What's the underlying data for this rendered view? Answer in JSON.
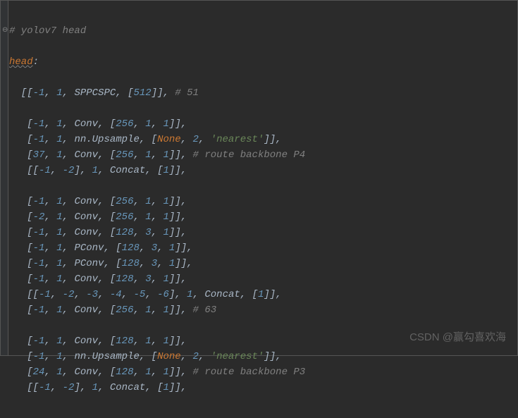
{
  "editor": {
    "comment_top": "# yolov7 head",
    "head_key": "head",
    "colon": ":",
    "lines": [
      {
        "text": "[[-1, 1, SPPCSPC, [512]],",
        "comment": " # 51"
      },
      {
        "text": ""
      },
      {
        "text": " [-1, 1, Conv, [256, 1, 1]],"
      },
      {
        "text_prefix": " [-1, 1, nn.Upsample, [None, 2, ",
        "string": "'nearest'",
        "text_suffix": "]],"
      },
      {
        "text": " [37, 1, Conv, [256, 1, 1]],",
        "comment": " # route backbone P4"
      },
      {
        "text": " [[-1, -2], 1, Concat, [1]],"
      },
      {
        "text": ""
      },
      {
        "text": " [-1, 1, Conv, [256, 1, 1]],"
      },
      {
        "text": " [-2, 1, Conv, [256, 1, 1]],"
      },
      {
        "text": " [-1, 1, Conv, [128, 3, 1]],"
      },
      {
        "text": " [-1, 1, PConv, [128, 3, 1]],"
      },
      {
        "text": " [-1, 1, PConv, [128, 3, 1]],"
      },
      {
        "text": " [-1, 1, Conv, [128, 3, 1]],"
      },
      {
        "text": " [[-1, -2, -3, -4, -5, -6], 1, Concat, [1]],"
      },
      {
        "text": " [-1, 1, Conv, [256, 1, 1]],",
        "comment": " # 63"
      },
      {
        "text": ""
      },
      {
        "text": " [-1, 1, Conv, [128, 1, 1]],"
      },
      {
        "text_prefix": " [-1, 1, nn.Upsample, [None, 2, ",
        "string": "'nearest'",
        "text_suffix": "]],"
      },
      {
        "text": " [24, 1, Conv, [128, 1, 1]],",
        "comment": " # route backbone P3"
      },
      {
        "text": " [[-1, -2], 1, Concat, [1]],"
      }
    ]
  },
  "watermark": "CSDN @赢勾喜欢海",
  "fold_icon": "⊖"
}
